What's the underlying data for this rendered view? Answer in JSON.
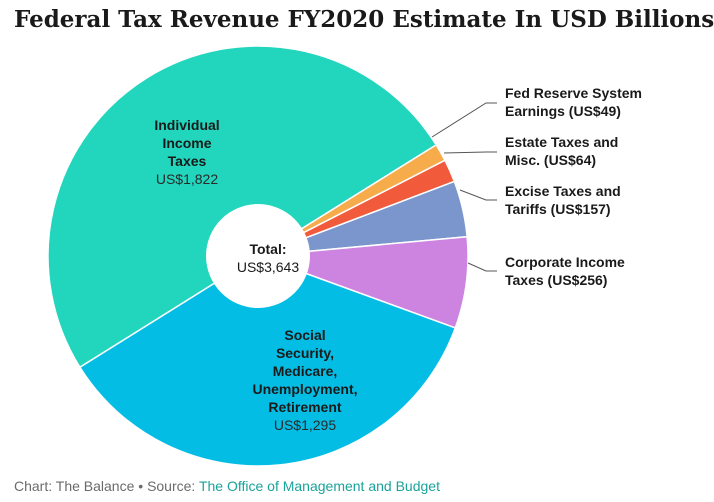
{
  "title": "Federal Tax Revenue FY2020 Estimate In USD Billions",
  "footer": {
    "credit": "Chart: The Balance",
    "separator": " • ",
    "source_prefix": "Source: ",
    "source_link": "The Office of Management and Budget"
  },
  "center": {
    "label": "Total:",
    "value": "US$3,643"
  },
  "chart_data": {
    "type": "pie",
    "title": "Federal Tax Revenue FY2020 Estimate In USD Billions",
    "donut": true,
    "total": 3643,
    "slices": [
      {
        "name_lines": [
          "Individual",
          "Income",
          "Taxes"
        ],
        "value_text": "US$1,822",
        "value": 1822,
        "color": "#21d6bd",
        "label_inside": true
      },
      {
        "name_lines": [
          "Social",
          "Security,",
          "Medicare,",
          "Unemployment,",
          "Retirement"
        ],
        "value_text": "US$1,295",
        "value": 1295,
        "color": "#04bde4",
        "label_inside": true
      },
      {
        "name_lines": [
          "Corporate Income",
          "Taxes (US$256)"
        ],
        "value": 256,
        "color": "#cc84e0",
        "label_inside": false
      },
      {
        "name_lines": [
          "Excise Taxes and",
          "Tariffs (US$157)"
        ],
        "value": 157,
        "color": "#7a96cc",
        "label_inside": false
      },
      {
        "name_lines": [
          "Estate Taxes and",
          "Misc. (US$64)"
        ],
        "value": 64,
        "color": "#f25a3c",
        "label_inside": false
      },
      {
        "name_lines": [
          "Fed Reserve System",
          "Earnings (US$49)"
        ],
        "value": 49,
        "color": "#f7ac4c",
        "label_inside": false
      }
    ]
  }
}
